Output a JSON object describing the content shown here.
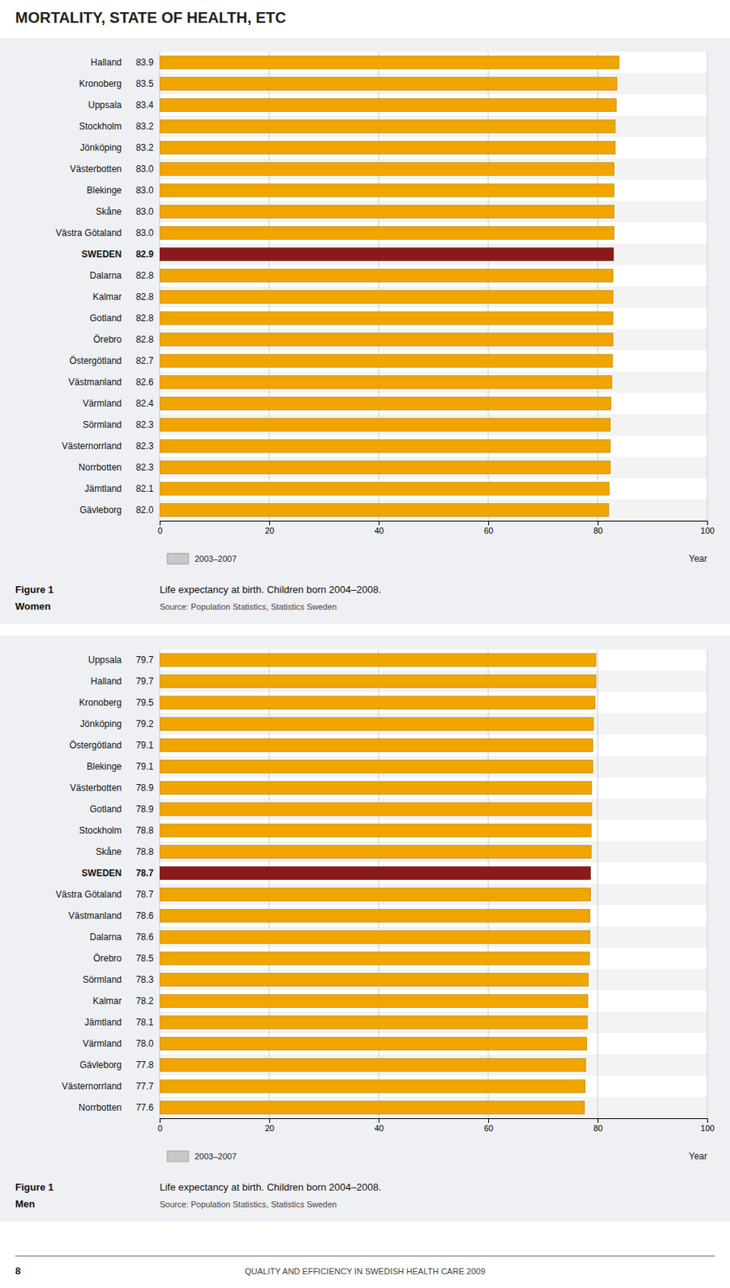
{
  "page_title": "MORTALITY, STATE OF HEALTH, ETC",
  "page_footer": "QUALITY AND EFFICIENCY IN SWEDISH HEALTH CARE 2009",
  "page_number": "8",
  "chart_data": [
    {
      "type": "bar",
      "orientation": "horizontal",
      "figure_label": "Figure 1",
      "subtitle": "Women",
      "title": "Life expectancy at birth. Children born 2004–2008.",
      "source": "Source: Population Statistics, Statistics Sweden",
      "categories": [
        "Halland",
        "Kronoberg",
        "Uppsala",
        "Stockholm",
        "Jönköping",
        "Västerbotten",
        "Blekinge",
        "Skåne",
        "Västra Götaland",
        "SWEDEN",
        "Dalarna",
        "Kalmar",
        "Gotland",
        "Örebro",
        "Östergötland",
        "Västmanland",
        "Värmland",
        "Sörmland",
        "Västernorrland",
        "Norrbotten",
        "Jämtland",
        "Gävleborg"
      ],
      "series": [
        {
          "name": "2003–2007",
          "color": "#c8c8c8",
          "values": [
            83.9,
            83.5,
            83.4,
            83.2,
            83.2,
            83.0,
            83.0,
            83.0,
            83.0,
            82.9,
            82.8,
            82.8,
            82.8,
            82.8,
            82.7,
            82.6,
            82.4,
            82.3,
            82.3,
            82.3,
            82.1,
            82.0
          ],
          "value_labels": [
            "83.9",
            "83.5",
            "83.4",
            "83.2",
            "83.2",
            "83.0",
            "83.0",
            "83.0",
            "83.0",
            "82.9",
            "82.8",
            "82.8",
            "82.8",
            "82.8",
            "82.7",
            "82.6",
            "82.4",
            "82.3",
            "82.3",
            "82.3",
            "82.1",
            "82.0"
          ],
          "colors": [
            "#f0a500",
            "#f0a500",
            "#f0a500",
            "#f0a500",
            "#f0a500",
            "#f0a500",
            "#f0a500",
            "#f0a500",
            "#f0a500",
            "#8b1a1a",
            "#f0a500",
            "#f0a500",
            "#f0a500",
            "#f0a500",
            "#f0a500",
            "#f0a500",
            "#f0a500",
            "#f0a500",
            "#f0a500",
            "#f0a500",
            "#f0a500",
            "#f0a500"
          ]
        }
      ],
      "xlabel": "Year",
      "xlim": [
        0,
        100
      ],
      "xticks": [
        0,
        20,
        40,
        60,
        80,
        100
      ],
      "grid": true,
      "legend": "bottom-left",
      "data_labels": true
    },
    {
      "type": "bar",
      "orientation": "horizontal",
      "figure_label": "Figure 1",
      "subtitle": "Men",
      "title": "Life expectancy at birth. Children born 2004–2008.",
      "source": "Source: Population Statistics, Statistics Sweden",
      "categories": [
        "Uppsala",
        "Halland",
        "Kronoberg",
        "Jönköping",
        "Östergötland",
        "Blekinge",
        "Västerbotten",
        "Gotland",
        "Stockholm",
        "Skåne",
        "SWEDEN",
        "Västra Götaland",
        "Västmanland",
        "Dalarna",
        "Örebro",
        "Sörmland",
        "Kalmar",
        "Jämtland",
        "Värmland",
        "Gävleborg",
        "Västernorrland",
        "Norrbotten"
      ],
      "series": [
        {
          "name": "2003–2007",
          "color": "#c8c8c8",
          "values": [
            79.7,
            79.7,
            79.5,
            79.2,
            79.1,
            79.1,
            78.9,
            78.9,
            78.8,
            78.8,
            78.7,
            78.7,
            78.6,
            78.6,
            78.5,
            78.3,
            78.2,
            78.1,
            78.0,
            77.8,
            77.7,
            77.6
          ],
          "value_labels": [
            "79.7",
            "79.7",
            "79.5",
            "79.2",
            "79.1",
            "79.1",
            "78.9",
            "78.9",
            "78.8",
            "78.8",
            "78.7",
            "78.7",
            "78.6",
            "78.6",
            "78.5",
            "78.3",
            "78.2",
            "78.1",
            "78.0",
            "77.8",
            "77.7",
            "77.6"
          ],
          "colors": [
            "#f0a500",
            "#f0a500",
            "#f0a500",
            "#f0a500",
            "#f0a500",
            "#f0a500",
            "#f0a500",
            "#f0a500",
            "#f0a500",
            "#f0a500",
            "#8b1a1a",
            "#f0a500",
            "#f0a500",
            "#f0a500",
            "#f0a500",
            "#f0a500",
            "#f0a500",
            "#f0a500",
            "#f0a500",
            "#f0a500",
            "#f0a500",
            "#f0a500"
          ]
        }
      ],
      "xlabel": "Year",
      "xlim": [
        0,
        100
      ],
      "xticks": [
        0,
        20,
        40,
        60,
        80,
        100
      ],
      "grid": true,
      "legend": "bottom-left",
      "data_labels": true
    }
  ]
}
